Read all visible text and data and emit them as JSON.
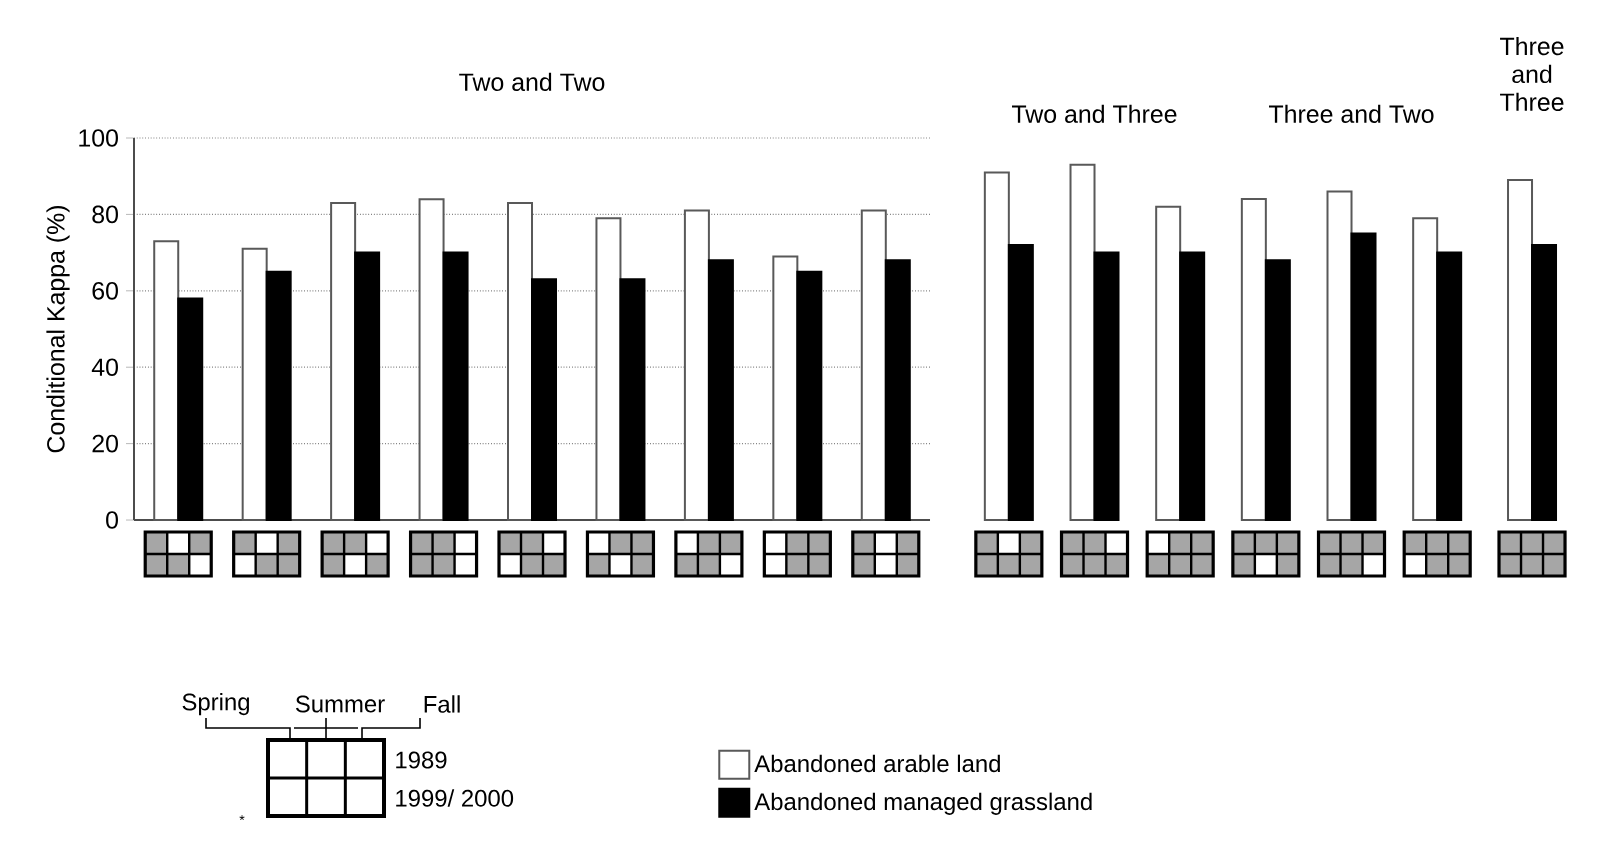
{
  "chart_data": [
    {
      "type": "bar",
      "title": "Two and Two",
      "ylabel": "Conditional Kappa (%)",
      "categories": [
        null,
        null,
        null,
        null,
        null,
        null,
        null,
        null,
        null
      ],
      "series": [
        {
          "name": "Abandoned arable land",
          "color": "#ffffff",
          "values": [
            73,
            71,
            83,
            84,
            83,
            79,
            81,
            69,
            81
          ]
        },
        {
          "name": "Abandoned managed grassland",
          "color": "#000000",
          "values": [
            58,
            65,
            70,
            70,
            63,
            63,
            68,
            65,
            68
          ]
        }
      ],
      "ylim": [
        0,
        100
      ],
      "yticks": [
        0,
        20,
        40,
        60,
        80,
        100
      ],
      "grid": "y",
      "legend": "bottom",
      "tick_labels": "y",
      "annotations": [
        "Spring",
        "Summer",
        "Fall",
        "1989",
        "1999/ 2000",
        "*"
      ]
    },
    {
      "type": "bar",
      "categories": [
        null,
        null,
        null,
        null,
        null,
        null
      ],
      "series": [
        {
          "color": "#ffffff",
          "values": [
            91,
            93,
            82,
            84,
            86,
            79
          ]
        },
        {
          "color": "#000000",
          "values": [
            72,
            70,
            70,
            68,
            75,
            70
          ]
        }
      ],
      "ylim": [
        0,
        100
      ],
      "yticks": [
        0,
        20,
        40,
        60,
        80,
        100
      ],
      "grid": "y",
      "tick_labels": false,
      "annotations": [
        "Two and Three",
        "Three and Two"
      ]
    },
    {
      "type": "bar",
      "title": "Three and Three",
      "categories": [
        null
      ],
      "series": [
        {
          "color": "#ffffff",
          "values": [
            89
          ]
        },
        {
          "color": "#000000",
          "values": [
            72
          ]
        }
      ],
      "ylim": [
        0,
        100
      ],
      "yticks": [
        0,
        20,
        40,
        60,
        80,
        100
      ],
      "grid": "y",
      "tick_labels": false
    }
  ]
}
